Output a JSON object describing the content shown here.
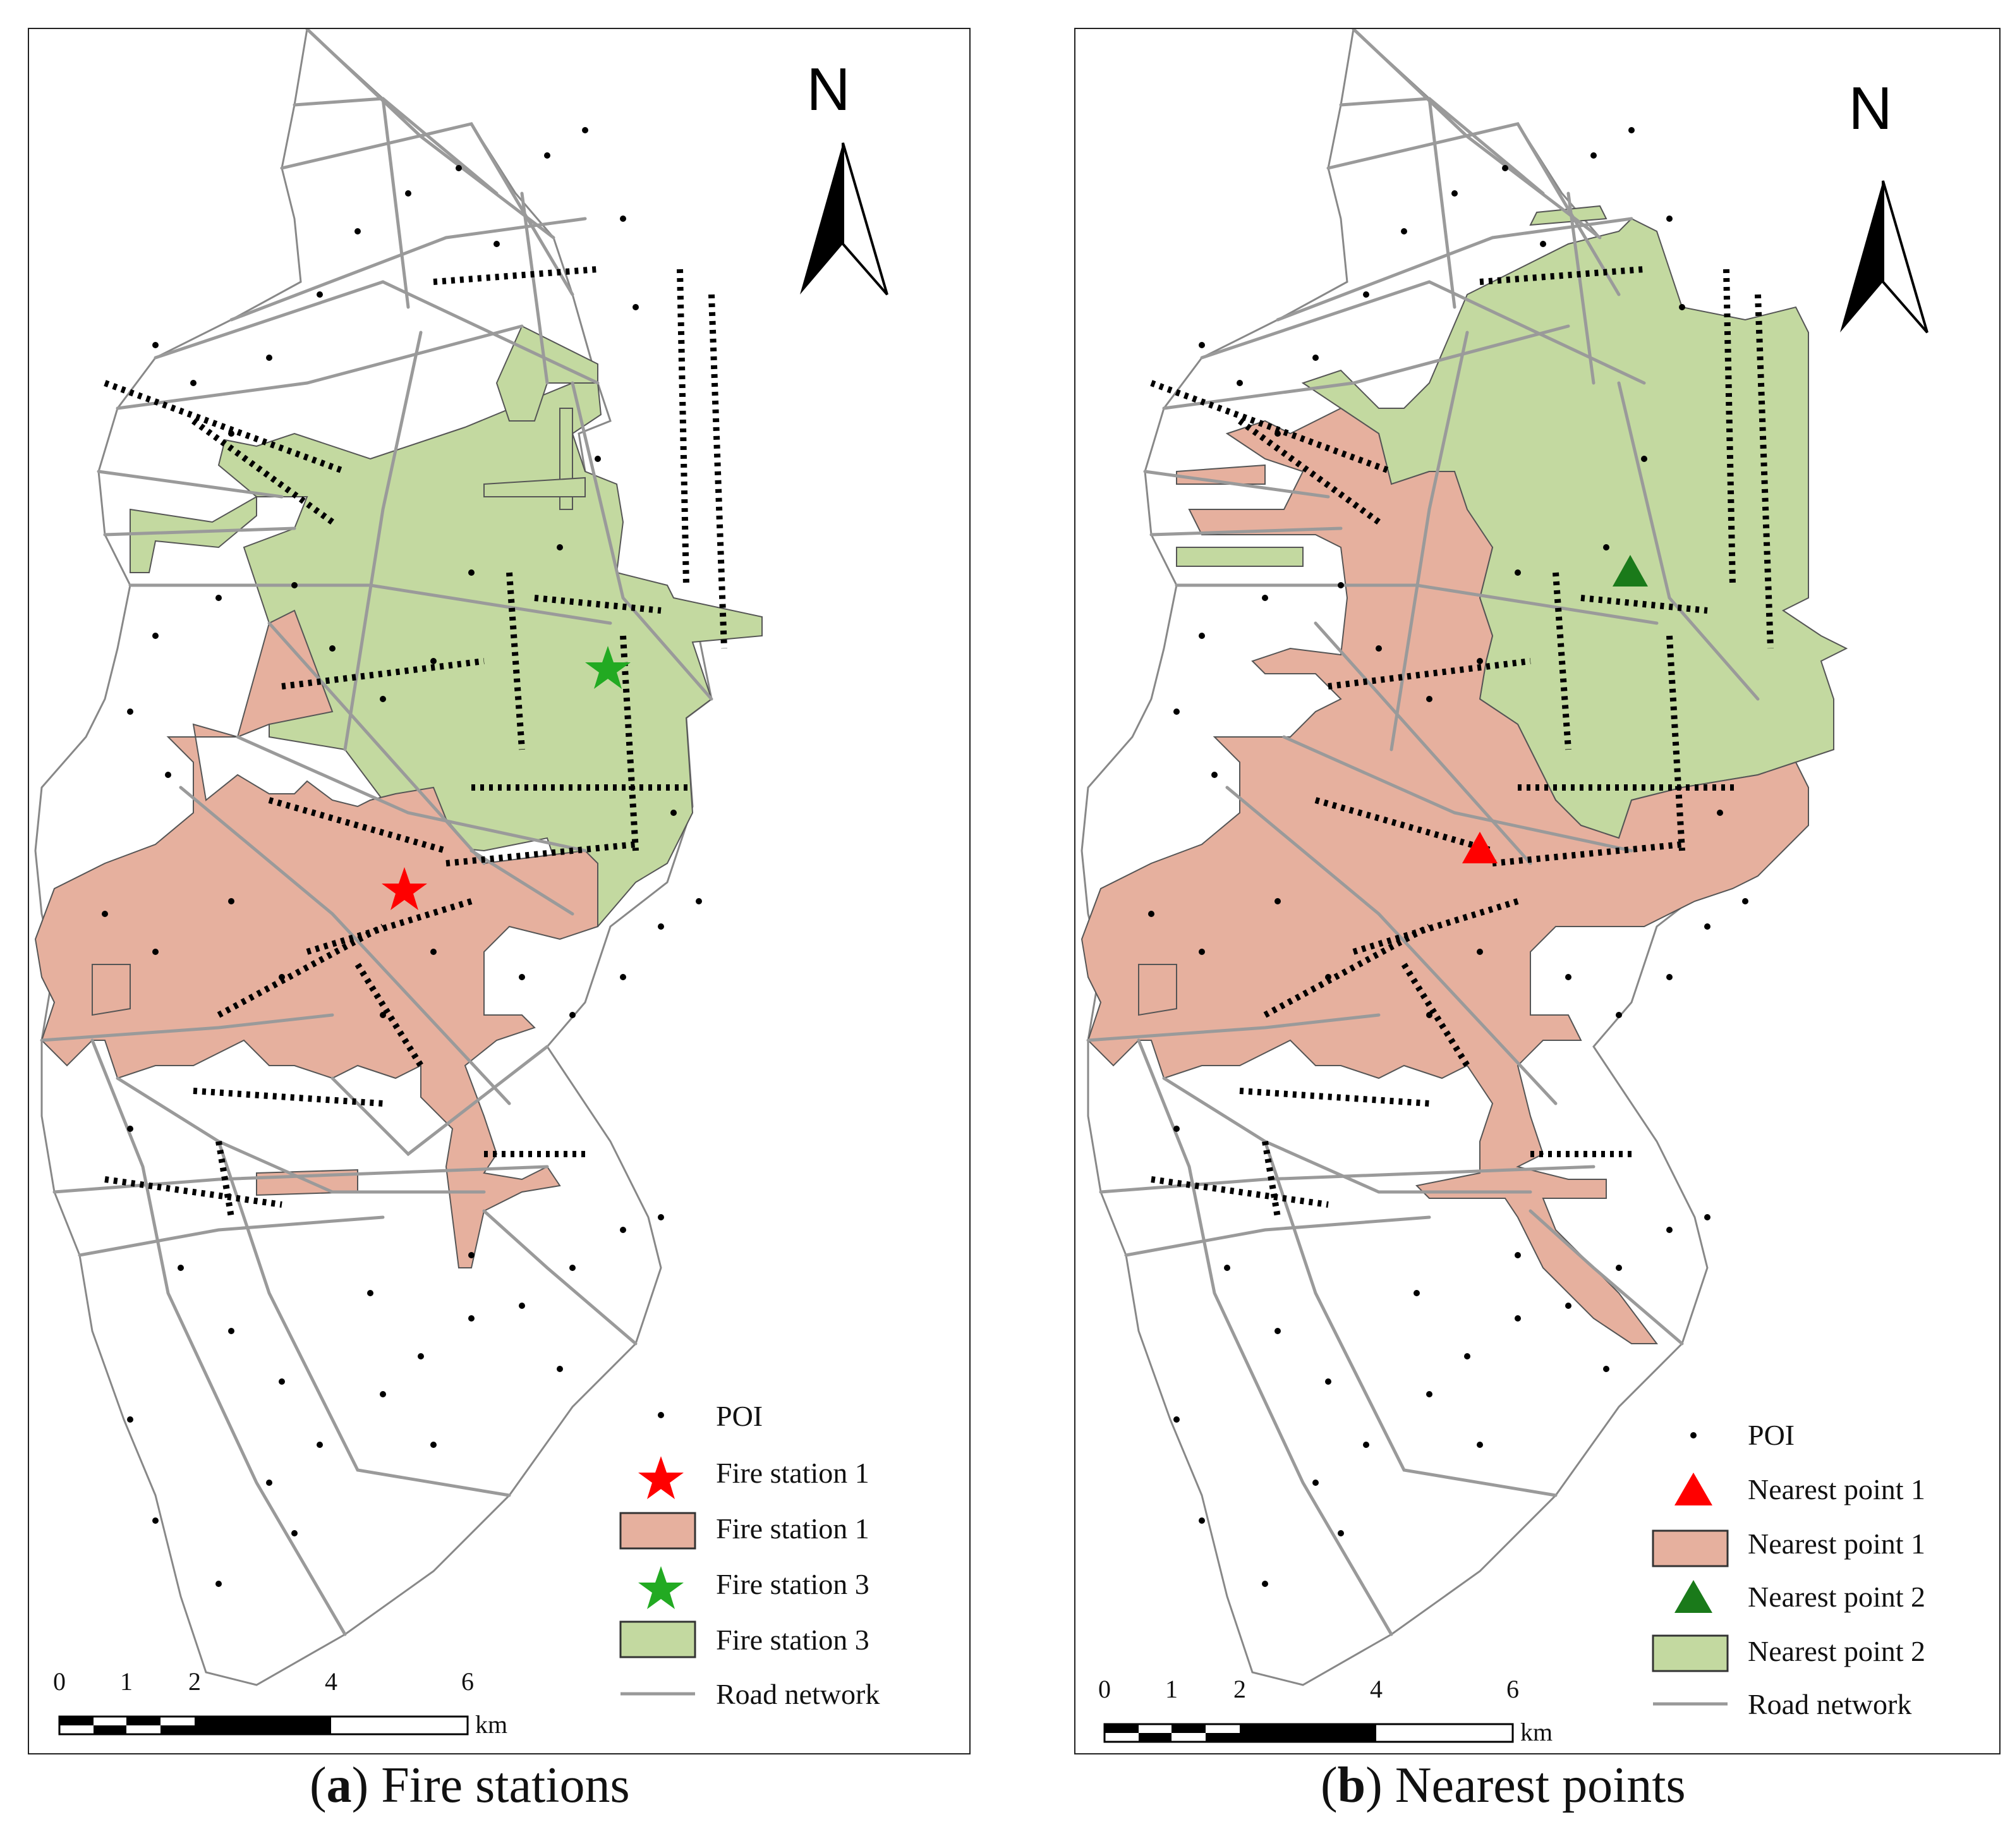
{
  "panels": [
    {
      "id": "a",
      "caption_letter": "a",
      "caption_text": "Fire stations",
      "north_label": "N",
      "scale_ticks": [
        "0",
        "1",
        "2",
        "4",
        "6"
      ],
      "scale_unit": "km",
      "legend": [
        {
          "symbol": "dot",
          "label": "POI"
        },
        {
          "symbol": "star",
          "color": "#ff0000",
          "label": "Fire station 1"
        },
        {
          "symbol": "area",
          "color": "#e6b09e",
          "label": "Fire station 1"
        },
        {
          "symbol": "star",
          "color": "#22aa22",
          "label": "Fire station 3"
        },
        {
          "symbol": "area",
          "color": "#c3d9a0",
          "label": "Fire station 3"
        },
        {
          "symbol": "line",
          "color": "#999999",
          "label": "Road network"
        }
      ]
    },
    {
      "id": "b",
      "caption_letter": "b",
      "caption_text": "Nearest points",
      "north_label": "N",
      "scale_ticks": [
        "0",
        "1",
        "2",
        "4",
        "6"
      ],
      "scale_unit": "km",
      "legend": [
        {
          "symbol": "dot",
          "label": "POI"
        },
        {
          "symbol": "triangle",
          "color": "#ff0000",
          "label": "Nearest point 1"
        },
        {
          "symbol": "area",
          "color": "#e6b09e",
          "label": "Nearest point 1"
        },
        {
          "symbol": "triangle",
          "color": "#1a7a1a",
          "label": "Nearest point 2"
        },
        {
          "symbol": "area",
          "color": "#c3d9a0",
          "label": "Nearest point 2"
        },
        {
          "symbol": "line",
          "color": "#999999",
          "label": "Road network"
        }
      ]
    }
  ],
  "colors": {
    "service_area_1": "#e6b09e",
    "service_area_2": "#c3d9a0",
    "road": "#9a9a9a",
    "poi": "#000000",
    "marker_red": "#ff0000",
    "marker_green_a": "#22aa22",
    "marker_green_b": "#1a7a1a"
  }
}
